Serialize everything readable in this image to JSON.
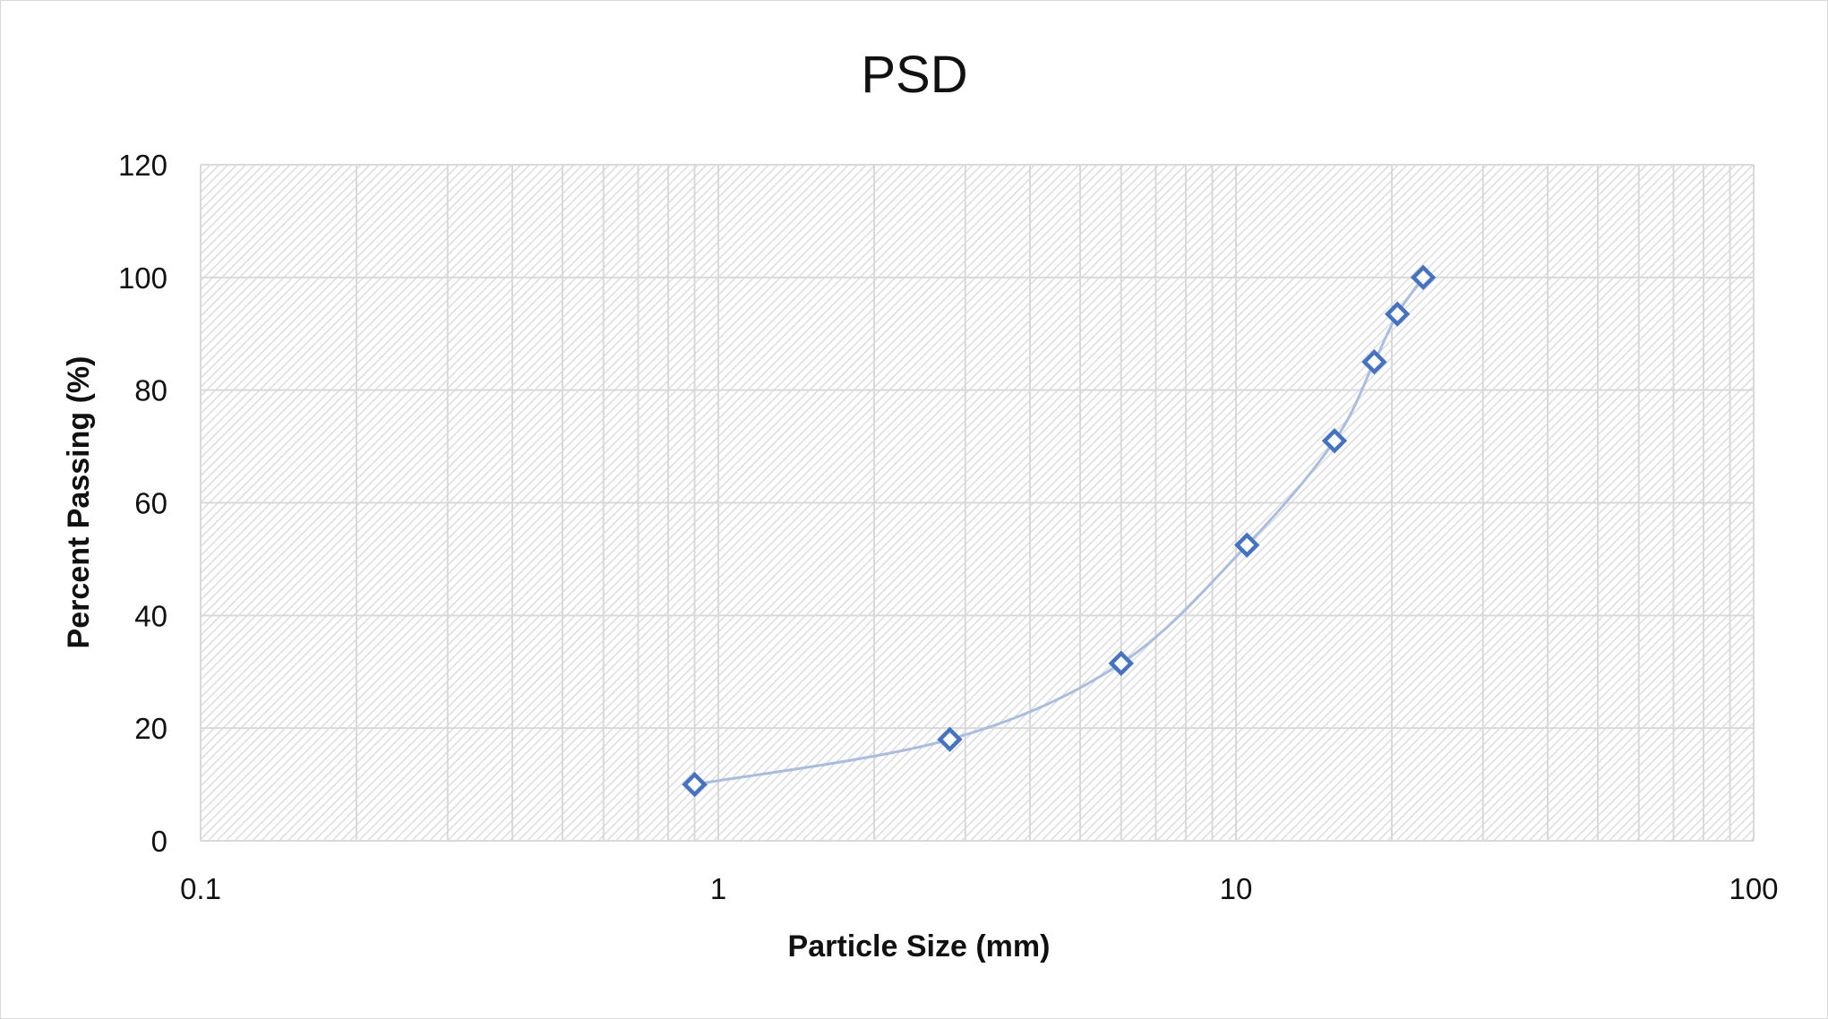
{
  "chart_data": {
    "type": "scatter",
    "title": "PSD",
    "xlabel": "Particle Size (mm)",
    "ylabel": "Percent Passing (%)",
    "xscale": "log",
    "xlim": [
      0.1,
      100
    ],
    "ylim": [
      0,
      120
    ],
    "x_ticks": [
      "0.1",
      "1",
      "10",
      "100"
    ],
    "y_ticks": [
      "0",
      "20",
      "40",
      "60",
      "80",
      "100",
      "120"
    ],
    "grid": true,
    "legend": "none",
    "series": [
      {
        "x": [
          0.9,
          2.8,
          6.0,
          10.5,
          15.5,
          18.5,
          20.5,
          23.0
        ],
        "y": [
          10.0,
          18.0,
          31.5,
          52.5,
          71.0,
          85.0,
          93.5,
          100.0
        ],
        "marker": "diamond-open",
        "line": "smooth"
      }
    ],
    "colors": {
      "marker": "#4472c4",
      "line": "#a9bde3",
      "gridline": "#d9d9d9",
      "plot_hatch": "#e0e0e0"
    }
  }
}
